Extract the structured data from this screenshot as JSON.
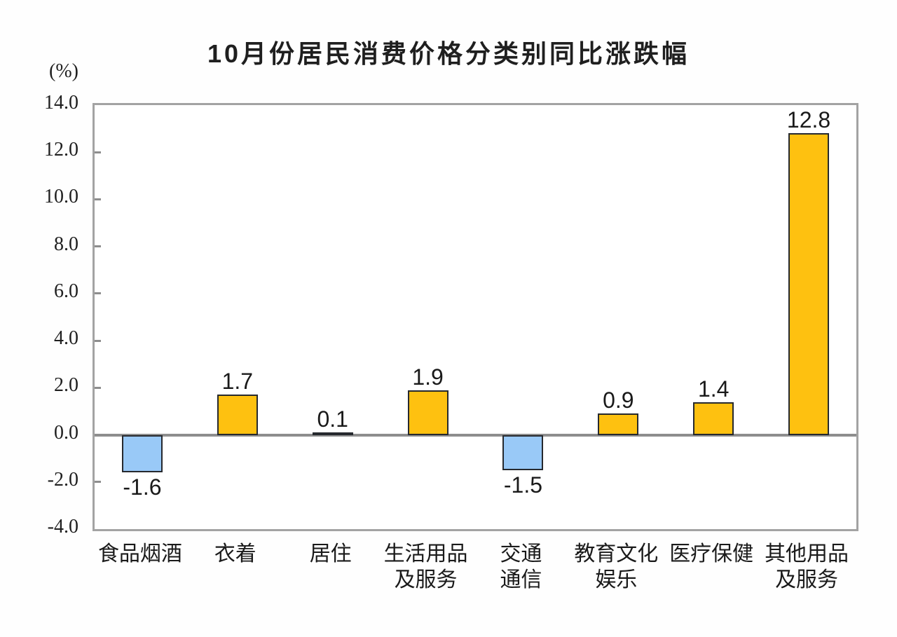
{
  "chart_data": {
    "type": "bar",
    "title": "10月份居民消费价格分类别同比涨跌幅",
    "unit_label": "(%)",
    "categories": [
      "食品烟酒",
      "衣着",
      "居住",
      "生活用品及服务",
      "交通通信",
      "教育文化娱乐",
      "医疗保健",
      "其他用品及服务"
    ],
    "category_lines": [
      [
        "食品烟酒"
      ],
      [
        "衣着"
      ],
      [
        "居住"
      ],
      [
        "生活用品",
        "及服务"
      ],
      [
        "交通",
        "通信"
      ],
      [
        "教育文化",
        "娱乐"
      ],
      [
        "医疗保健"
      ],
      [
        "其他用品",
        "及服务"
      ]
    ],
    "values": [
      -1.6,
      1.7,
      0.1,
      1.9,
      -1.5,
      0.9,
      1.4,
      12.8
    ],
    "value_labels": [
      "-1.6",
      "1.7",
      "0.1",
      "1.9",
      "-1.5",
      "0.9",
      "1.4",
      "12.8"
    ],
    "ylim": [
      -4.0,
      14.0
    ],
    "ytick_step": 2.0,
    "ytick_labels": [
      "14.0",
      "12.0",
      "10.0",
      "8.0",
      "6.0",
      "4.0",
      "2.0",
      "0.0",
      "-2.0",
      "-4.0"
    ],
    "xlabel": "",
    "ylabel": "(%)",
    "grid": false,
    "legend": "none",
    "colors": {
      "positive_bar": "#fec110",
      "negative_bar": "#99c9f7",
      "bar_border": "#26292e",
      "axis_frame": "#a3a3a3",
      "zero_line": "#8e8e8e",
      "text": "#1a1a1a"
    }
  }
}
